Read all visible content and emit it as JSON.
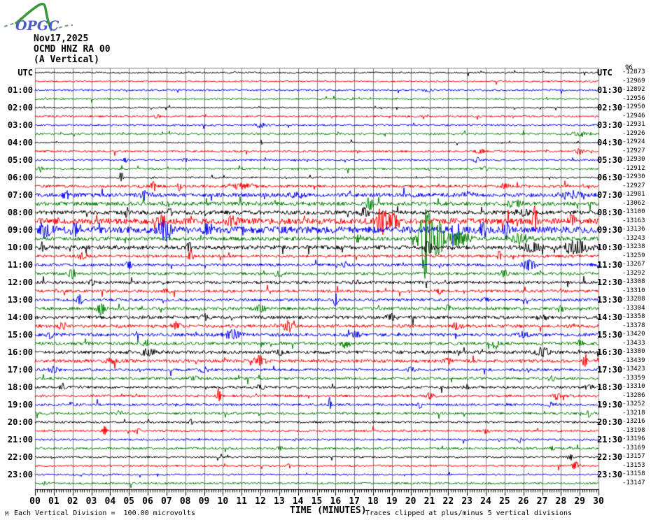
{
  "header": {
    "logo_text": "OPGC",
    "date": "Nov17,2025",
    "station": "OCMD HNZ RA 00",
    "component": "(A Vertical)",
    "corner_artifact": "96"
  },
  "footer": {
    "watermark": "M",
    "division_note": "Each Vertical Division =  100.00 microvolts",
    "axis_title": "TIME (MINUTES)",
    "clip_note": "Traces clipped at plus/minus 5 vertical divisions"
  },
  "chart_data": {
    "type": "line",
    "description": "24-hour seismic helicorder (webicorder) record, 48 half-hour trace lines stacked vertically",
    "x_axis": {
      "label": "TIME (MINUTES)",
      "range": [
        0,
        30
      ],
      "major_tick_min": 1,
      "minor_ticks_per_min": 8
    },
    "x_tick_labels": [
      "00",
      "01",
      "02",
      "03",
      "04",
      "05",
      "06",
      "07",
      "08",
      "09",
      "10",
      "11",
      "12",
      "13",
      "14",
      "15",
      "16",
      "17",
      "18",
      "19",
      "20",
      "21",
      "22",
      "23",
      "24",
      "25",
      "26",
      "27",
      "28",
      "29",
      "30"
    ],
    "left_axis_title": "UTC",
    "right_axis_title": "UTC",
    "left_time_labels": [
      "UTC",
      "01:00",
      "02:00",
      "03:00",
      "04:00",
      "05:00",
      "06:00",
      "07:00",
      "08:00",
      "09:00",
      "10:00",
      "11:00",
      "12:00",
      "13:00",
      "14:00",
      "15:00",
      "16:00",
      "17:00",
      "18:00",
      "19:00",
      "20:00",
      "21:00",
      "22:00",
      "23:00"
    ],
    "right_time_labels": [
      "UTC",
      "01:30",
      "02:30",
      "03:30",
      "04:30",
      "05:30",
      "06:30",
      "07:30",
      "08:30",
      "09:30",
      "10:30",
      "11:30",
      "12:30",
      "13:30",
      "14:30",
      "15:30",
      "16:30",
      "17:30",
      "18:30",
      "19:30",
      "20:30",
      "21:30",
      "22:30",
      "23:30"
    ],
    "right_offsets": [
      "-12873",
      "-12969",
      "-12892",
      "-12956",
      "-12950",
      "-12946",
      "-12931",
      "-12926",
      "-12924",
      "-12927",
      "-12930",
      "-12912",
      "-12930",
      "-12927",
      "-12981",
      "-13062",
      "-13100",
      "-13163",
      "-13136",
      "-13243",
      "-13238",
      "-13259",
      "-13267",
      "-13292",
      "-13308",
      "-13310",
      "-13288",
      "-13304",
      "-13358",
      "-13378",
      "-13420",
      "-13433",
      "-13380",
      "-13439",
      "-13423",
      "-13359",
      "-13310",
      "-13286",
      "-13252",
      "-13218",
      "-13216",
      "-13198",
      "-13196",
      "-13169",
      "-13157",
      "-13153",
      "-13158",
      "-13147"
    ],
    "lines_per_hour": 2,
    "line_duration_min": 30,
    "start_utc": "00:00",
    "clip_divisions": 5,
    "microvolts_per_division": "100.00",
    "colors": {
      "black": "#000000",
      "red": "#ff0000",
      "blue": "#0000ff",
      "green": "#008000",
      "grid": "#7f7f7f"
    },
    "color_cycle": [
      "black",
      "red",
      "blue",
      "green"
    ],
    "traces_format": "[noise_amplitude_px, [[event_minute, event_amplitude_px, event_duration_min], ...]]",
    "traces": [
      [
        1.1,
        []
      ],
      [
        1.1,
        []
      ],
      [
        1.3,
        [
          [
            21,
            3,
            0.5
          ]
        ]
      ],
      [
        1.2,
        []
      ],
      [
        1.0,
        []
      ],
      [
        1.4,
        [
          [
            6.5,
            3,
            0.3
          ]
        ]
      ],
      [
        1.3,
        [
          [
            12,
            3,
            0.6
          ]
        ]
      ],
      [
        1.4,
        [
          [
            29,
            3.5,
            1.0
          ]
        ]
      ],
      [
        1.0,
        []
      ],
      [
        1.4,
        [
          [
            23.7,
            4,
            0.4
          ],
          [
            29,
            4,
            0.4
          ]
        ]
      ],
      [
        1.3,
        [
          [
            4.8,
            3,
            0.2
          ],
          [
            8,
            3,
            0.2
          ],
          [
            23.5,
            4,
            0.3
          ]
        ]
      ],
      [
        1.4,
        [
          [
            0.3,
            5,
            0.2
          ],
          [
            24,
            3,
            0.3
          ]
        ]
      ],
      [
        1.2,
        [
          [
            4.6,
            11,
            0.12
          ]
        ]
      ],
      [
        2.0,
        [
          [
            6.3,
            7,
            0.2
          ],
          [
            7.7,
            7,
            0.2
          ],
          [
            11,
            4,
            1.5
          ],
          [
            25,
            4,
            0.4
          ]
        ]
      ],
      [
        2.8,
        [
          [
            1.7,
            5,
            0.5
          ],
          [
            5.8,
            6,
            0.3
          ],
          [
            14,
            4,
            0.8
          ],
          [
            23,
            4,
            0.6
          ],
          [
            28.5,
            5,
            1.2
          ]
        ]
      ],
      [
        2.8,
        [
          [
            7,
            4,
            0.5
          ],
          [
            17.8,
            9,
            0.4
          ],
          [
            25.5,
            5,
            0.8
          ]
        ]
      ],
      [
        2.8,
        [
          [
            4.9,
            10,
            0.15
          ],
          [
            7.2,
            8,
            0.25
          ],
          [
            17.6,
            9,
            0.4
          ],
          [
            26,
            5,
            0.8
          ]
        ]
      ],
      [
        4.2,
        [
          [
            6.8,
            13,
            0.4
          ],
          [
            10.5,
            8,
            0.5
          ],
          [
            18.5,
            22,
            0.5
          ],
          [
            19.1,
            10,
            0.8
          ],
          [
            26.6,
            26,
            0.18
          ],
          [
            28.6,
            11,
            0.3
          ]
        ]
      ],
      [
        4.8,
        [
          [
            0.6,
            11,
            0.8
          ],
          [
            2.1,
            9,
            0.6
          ],
          [
            6.9,
            16,
            0.6
          ],
          [
            9.2,
            9,
            0.4
          ],
          [
            22.5,
            11,
            0.5
          ],
          [
            23.8,
            11,
            0.4
          ],
          [
            25.1,
            15,
            0.2
          ]
        ]
      ],
      [
        2.8,
        [
          [
            17.2,
            5,
            0.4
          ],
          [
            20.8,
            60,
            0.55
          ],
          [
            21.5,
            25,
            0.7
          ],
          [
            22.5,
            10,
            1.2
          ],
          [
            25.8,
            6,
            1.2
          ]
        ]
      ],
      [
        2.8,
        [
          [
            0.4,
            7,
            0.3
          ],
          [
            8.2,
            8,
            0.25
          ],
          [
            20.9,
            10,
            0.3
          ],
          [
            26.5,
            8,
            1.0
          ],
          [
            28.8,
            10,
            1.2
          ]
        ]
      ],
      [
        2.0,
        [
          [
            2.5,
            5,
            0.4
          ],
          [
            8.3,
            10,
            0.2
          ],
          [
            24.7,
            8,
            0.15
          ]
        ]
      ],
      [
        2.0,
        [
          [
            5,
            5,
            0.3
          ],
          [
            16.5,
            5,
            0.4
          ],
          [
            26.3,
            8,
            0.6
          ]
        ]
      ],
      [
        2.0,
        [
          [
            2,
            7,
            0.4
          ],
          [
            13,
            4,
            0.5
          ],
          [
            25,
            6,
            0.4
          ]
        ]
      ],
      [
        2.0,
        [
          [
            3,
            4,
            0.4
          ],
          [
            17,
            4,
            0.4
          ]
        ]
      ],
      [
        2.0,
        [
          [
            7,
            4,
            0.4
          ],
          [
            21.5,
            5,
            0.3
          ]
        ]
      ],
      [
        2.0,
        [
          [
            2.4,
            7,
            0.3
          ],
          [
            16,
            10,
            0.2
          ],
          [
            24,
            4,
            0.4
          ]
        ]
      ],
      [
        2.2,
        [
          [
            3.5,
            8,
            0.4
          ],
          [
            12,
            5,
            0.6
          ],
          [
            22,
            7,
            0.3
          ],
          [
            28,
            5,
            0.4
          ]
        ]
      ],
      [
        2.3,
        [
          [
            9,
            4,
            0.5
          ],
          [
            19,
            5,
            0.5
          ],
          [
            27,
            4,
            0.6
          ]
        ]
      ],
      [
        2.3,
        [
          [
            1.5,
            5,
            0.5
          ],
          [
            7.5,
            5,
            0.6
          ],
          [
            13.5,
            8,
            0.5
          ],
          [
            22.5,
            6,
            0.5
          ]
        ]
      ],
      [
        2.3,
        [
          [
            0.8,
            5,
            0.4
          ],
          [
            10.5,
            6,
            0.8
          ],
          [
            17,
            5,
            0.7
          ],
          [
            26,
            5,
            0.5
          ]
        ]
      ],
      [
        2.3,
        [
          [
            6,
            4,
            0.5
          ],
          [
            16.5,
            5,
            0.7
          ],
          [
            24.5,
            8,
            0.25
          ],
          [
            29,
            5,
            0.3
          ]
        ]
      ],
      [
        2.3,
        [
          [
            6,
            5,
            0.8
          ],
          [
            13,
            4,
            0.5
          ],
          [
            27,
            7,
            0.7
          ]
        ]
      ],
      [
        2.3,
        [
          [
            4,
            4,
            0.5
          ],
          [
            12,
            7,
            0.6
          ],
          [
            22,
            4,
            0.5
          ],
          [
            29.3,
            8,
            0.3
          ]
        ]
      ],
      [
        1.9,
        [
          [
            1,
            5,
            0.4
          ],
          [
            9,
            4,
            0.4
          ],
          [
            20,
            4,
            0.4
          ]
        ]
      ],
      [
        1.9,
        [
          [
            8.5,
            4,
            0.5
          ],
          [
            27.5,
            4,
            0.4
          ]
        ]
      ],
      [
        1.8,
        [
          [
            1.5,
            5,
            0.3
          ],
          [
            12,
            5,
            0.3
          ],
          [
            23,
            4,
            0.3
          ],
          [
            29.5,
            5,
            0.3
          ]
        ]
      ],
      [
        1.8,
        [
          [
            9.8,
            11,
            0.15
          ],
          [
            21,
            5,
            0.4
          ],
          [
            27.8,
            5,
            0.4
          ]
        ]
      ],
      [
        1.7,
        [
          [
            2,
            4,
            0.3
          ],
          [
            15.7,
            10,
            0.12
          ],
          [
            20.5,
            5,
            0.2
          ],
          [
            27.5,
            4,
            0.3
          ]
        ]
      ],
      [
        1.7,
        [
          [
            4.5,
            4,
            0.3
          ],
          [
            29.5,
            7,
            0.15
          ]
        ]
      ],
      [
        1.5,
        [
          [
            8.3,
            6,
            0.15
          ]
        ]
      ],
      [
        1.5,
        [
          [
            3.7,
            9,
            0.15
          ],
          [
            5.5,
            4,
            0.3
          ],
          [
            24,
            4,
            0.3
          ]
        ]
      ],
      [
        1.4,
        [
          [
            25.8,
            6,
            0.15
          ]
        ]
      ],
      [
        1.6,
        [
          [
            13,
            4,
            0.3
          ],
          [
            27.5,
            4,
            0.3
          ]
        ]
      ],
      [
        1.2,
        [
          [
            28.5,
            4,
            0.3
          ]
        ]
      ],
      [
        1.4,
        [
          [
            13.5,
            4,
            0.2
          ],
          [
            28.8,
            6,
            0.3
          ]
        ]
      ],
      [
        1.2,
        []
      ],
      [
        1.4,
        [
          [
            0.5,
            3,
            0.3
          ]
        ]
      ]
    ]
  }
}
